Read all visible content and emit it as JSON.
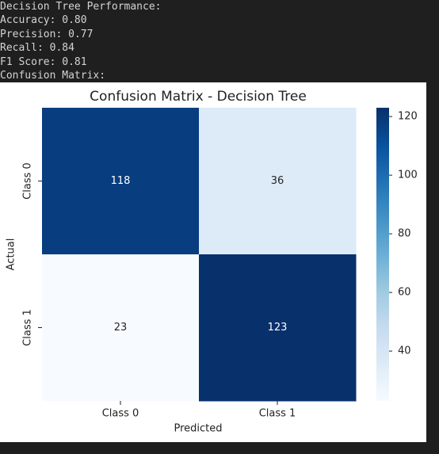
{
  "console": [
    "Decision Tree Performance:",
    "Accuracy: 0.80",
    "Precision: 0.77",
    "Recall: 0.84",
    "F1 Score: 0.81",
    "Confusion Matrix:"
  ],
  "chart_data": {
    "type": "heatmap",
    "title": "Confusion Matrix - Decision Tree",
    "xlabel": "Predicted",
    "ylabel": "Actual",
    "x_categories": [
      "Class 0",
      "Class 1"
    ],
    "y_categories": [
      "Class 0",
      "Class 1"
    ],
    "values": [
      [
        118,
        36
      ],
      [
        23,
        123
      ]
    ],
    "colormap": "Blues",
    "clim": [
      23,
      123
    ],
    "cticks": [
      40,
      60,
      80,
      100,
      120
    ]
  }
}
